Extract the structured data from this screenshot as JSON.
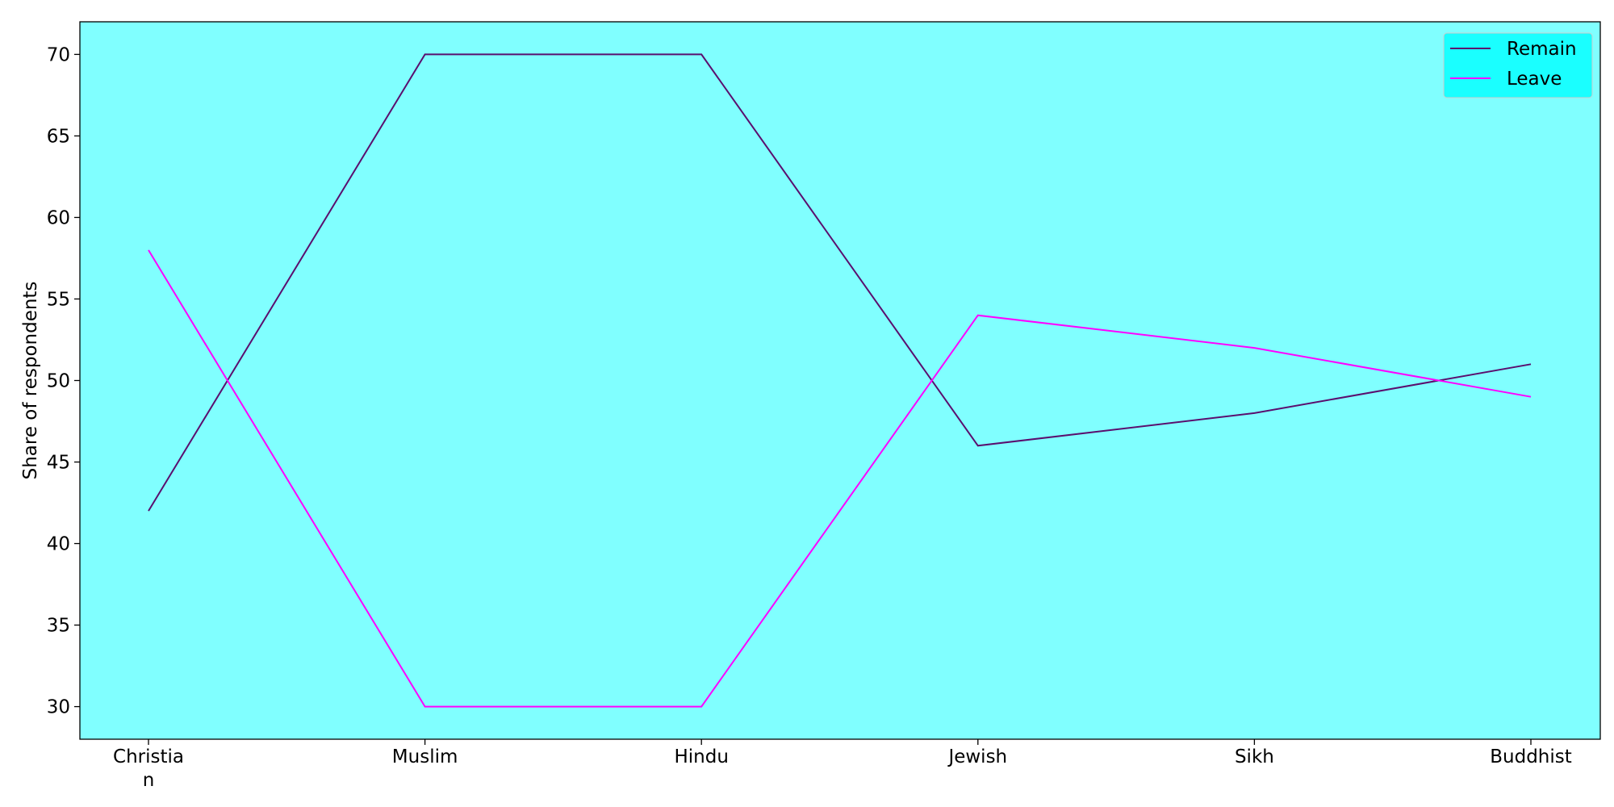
{
  "chart_data": {
    "type": "line",
    "categories": [
      "Christia\nn",
      "Muslim",
      "Hindu",
      "Jewish",
      "Sikh",
      "Buddhist"
    ],
    "series": [
      {
        "name": "Remain",
        "values": [
          42,
          70,
          70,
          46,
          48,
          51
        ],
        "color": "#5a0f6e"
      },
      {
        "name": "Leave",
        "values": [
          58,
          30,
          30,
          54,
          52,
          49
        ],
        "color": "#ff00ff"
      }
    ],
    "title": "",
    "xlabel": "",
    "ylabel": "Share of respondents",
    "ylim": [
      28,
      72
    ],
    "yticks": [
      30,
      35,
      40,
      45,
      50,
      55,
      60,
      65,
      70
    ],
    "grid": false,
    "legend_position": "top-right",
    "plot_background": "#80ffff",
    "legend_background": "#1affff"
  }
}
